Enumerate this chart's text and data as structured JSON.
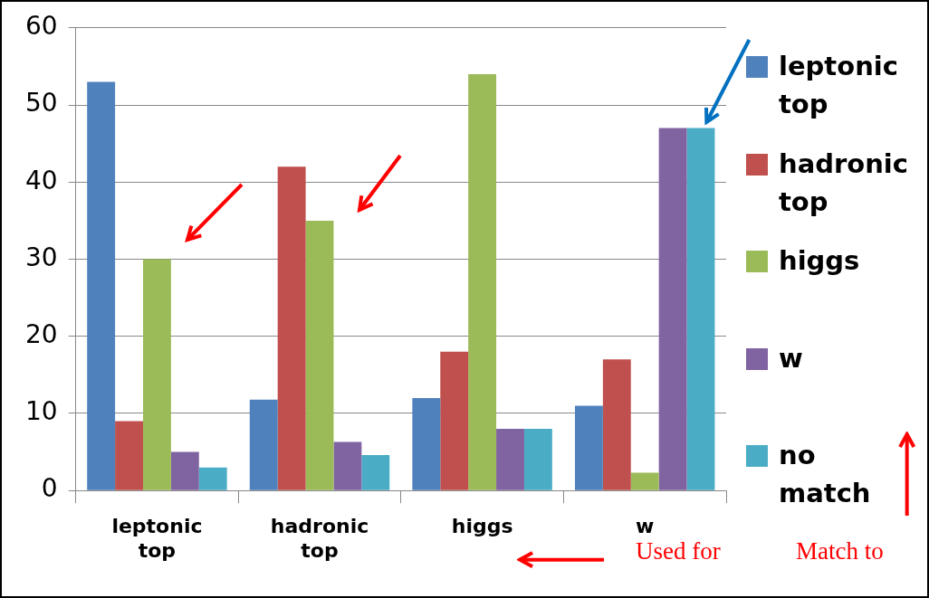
{
  "chart_data": {
    "type": "bar",
    "categories": [
      "leptonic top",
      "hadronic top",
      "higgs",
      "w"
    ],
    "series": [
      {
        "name": "leptonic top",
        "color": "#4f81bd",
        "values": [
          53,
          11.8,
          12,
          11
        ]
      },
      {
        "name": "hadronic top",
        "color": "#c0504d",
        "values": [
          9,
          42,
          18,
          17
        ]
      },
      {
        "name": "higgs",
        "color": "#9bbb59",
        "values": [
          30,
          35,
          54,
          2.3
        ]
      },
      {
        "name": "w",
        "color": "#8064a2",
        "values": [
          5,
          6.3,
          8,
          47
        ]
      },
      {
        "name": "no match",
        "color": "#4bacc6",
        "values": [
          3,
          4.6,
          8,
          47
        ]
      }
    ],
    "ylim": [
      0,
      60
    ],
    "yticks": [
      0,
      10,
      20,
      30,
      40,
      50,
      60
    ],
    "grid": "y",
    "legend": "right",
    "annotations": [
      "Used for",
      "Match to"
    ]
  }
}
